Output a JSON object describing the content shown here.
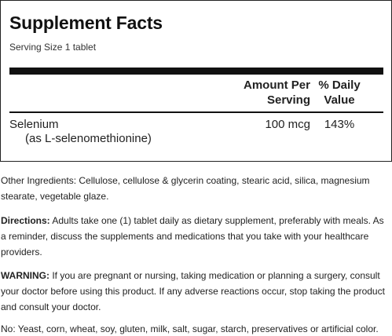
{
  "facts": {
    "title": "Supplement Facts",
    "serving_size": "Serving Size 1 tablet",
    "header_amount_line1": "Amount Per",
    "header_amount_line2": "Serving",
    "header_dv_line1": "% Daily",
    "header_dv_line2": "Value",
    "nutrient": {
      "name": "Selenium",
      "sub": "(as L-selenomethionine)",
      "amount": "100 mcg",
      "daily_value": "143%"
    }
  },
  "other_ingredients": "Other Ingredients: Cellulose, cellulose & glycerin coating, stearic acid, silica, magnesium stearate, vegetable glaze.",
  "directions": {
    "label": "Directions:",
    "text": " Adults take one (1) tablet daily as dietary supplement, preferably with meals. As a reminder, discuss the supplements and medications that you take with your healthcare providers."
  },
  "warning": {
    "label": "WARNING:",
    "text": " If you are pregnant or nursing, taking medication or planning a surgery, consult your doctor before using this product. If any adverse reactions occur, stop taking the product and consult your doctor."
  },
  "free_from": "No: Yeast, corn, wheat, soy, gluten, milk, salt, sugar, starch, preservatives or artificial color."
}
